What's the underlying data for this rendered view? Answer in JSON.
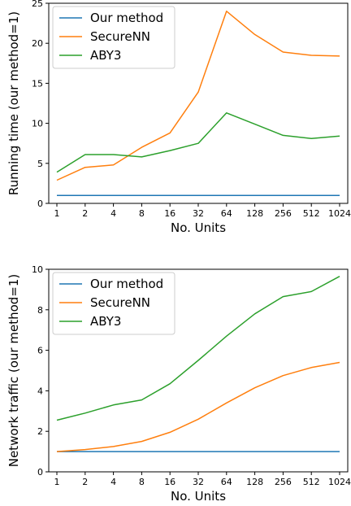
{
  "chart_data": [
    {
      "type": "line",
      "categories": [
        "1",
        "2",
        "4",
        "8",
        "16",
        "32",
        "64",
        "128",
        "256",
        "512",
        "1024"
      ],
      "xlabel": "No. Units",
      "ylabel": "Running time (our method=1)",
      "ylim": [
        0,
        25
      ],
      "yticks": [
        0,
        5,
        10,
        15,
        20,
        25
      ],
      "grid": false,
      "legend_position": "top-left",
      "series": [
        {
          "name": "Our method",
          "color": "#1f77b4",
          "values": [
            1,
            1,
            1,
            1,
            1,
            1,
            1,
            1,
            1,
            1,
            1
          ]
        },
        {
          "name": "SecureNN",
          "color": "#ff7f0e",
          "values": [
            2.9,
            4.5,
            4.8,
            7.0,
            8.8,
            13.9,
            24.0,
            21.1,
            18.9,
            18.5,
            18.4
          ]
        },
        {
          "name": "ABY3",
          "color": "#2ca02c",
          "values": [
            3.9,
            6.1,
            6.1,
            5.8,
            6.6,
            7.5,
            11.3,
            9.9,
            8.5,
            8.1,
            8.4
          ]
        }
      ]
    },
    {
      "type": "line",
      "categories": [
        "1",
        "2",
        "4",
        "8",
        "16",
        "32",
        "64",
        "128",
        "256",
        "512",
        "1024"
      ],
      "xlabel": "No. Units",
      "ylabel": "Network traffic (our method=1)",
      "ylim": [
        0,
        10
      ],
      "yticks": [
        0,
        2,
        4,
        6,
        8,
        10
      ],
      "grid": false,
      "legend_position": "top-left",
      "series": [
        {
          "name": "Our method",
          "color": "#1f77b4",
          "values": [
            1,
            1,
            1,
            1,
            1,
            1,
            1,
            1,
            1,
            1,
            1
          ]
        },
        {
          "name": "SecureNN",
          "color": "#ff7f0e",
          "values": [
            1.0,
            1.1,
            1.25,
            1.5,
            1.95,
            2.6,
            3.4,
            4.15,
            4.75,
            5.15,
            5.4
          ]
        },
        {
          "name": "ABY3",
          "color": "#2ca02c",
          "values": [
            2.55,
            2.9,
            3.3,
            3.55,
            4.35,
            5.5,
            6.7,
            7.8,
            8.65,
            8.9,
            9.65
          ]
        }
      ]
    }
  ]
}
